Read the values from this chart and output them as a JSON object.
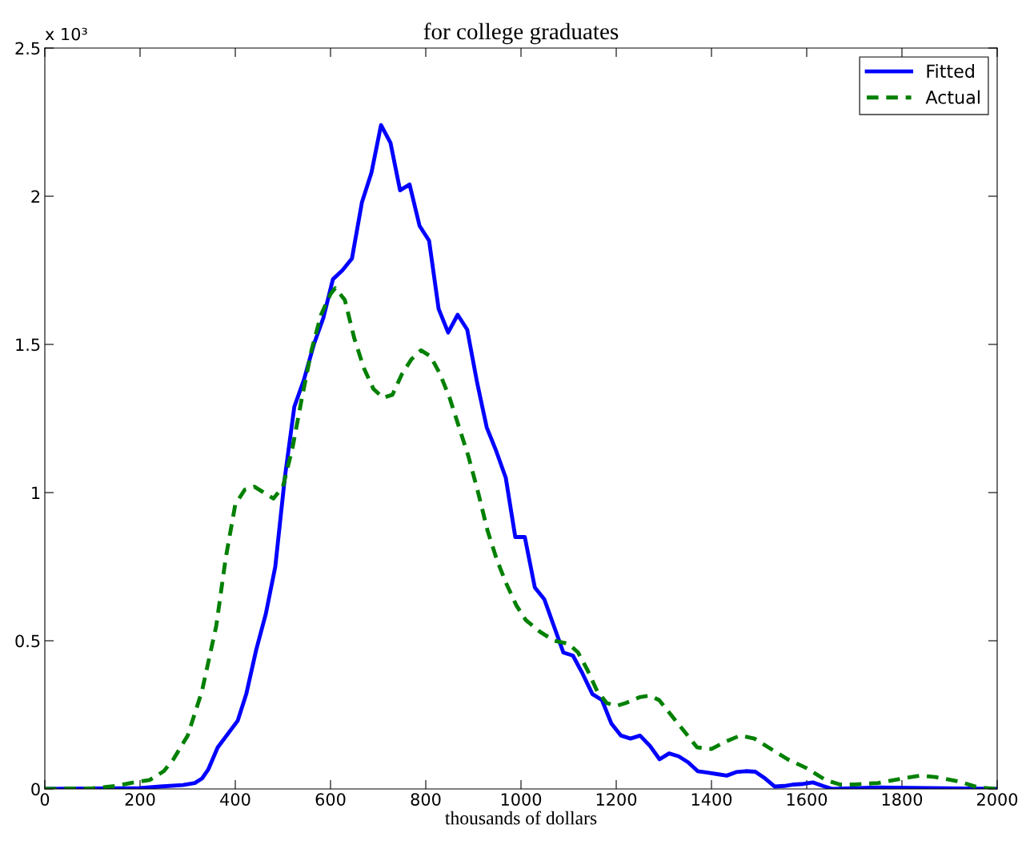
{
  "chart_data": {
    "type": "line",
    "title": "for college graduates",
    "xlabel": "thousands of dollars",
    "annotations": [
      "x 10³"
    ],
    "xlim": [
      0,
      2000
    ],
    "xticks": [
      0,
      200,
      400,
      600,
      800,
      1000,
      1200,
      1400,
      1600,
      1800,
      2000
    ],
    "ylim": [
      0,
      2.5
    ],
    "yticks": [
      0,
      0.5,
      1,
      1.5,
      2,
      2.5
    ],
    "grid": false,
    "legend": "top right",
    "marker": "none",
    "series": [
      {
        "name": "Fitted",
        "color": "#0000ff",
        "line_style": "solid",
        "x": [
          0,
          200,
          242,
          290,
          315,
          330,
          343,
          363,
          405,
          423,
          444,
          464,
          484,
          504,
          524,
          544,
          565,
          585,
          605,
          625,
          645,
          666,
          686,
          706,
          726,
          746,
          766,
          787,
          807,
          827,
          847,
          867,
          887,
          908,
          928,
          948,
          968,
          988,
          1008,
          1029,
          1049,
          1069,
          1089,
          1109,
          1129,
          1150,
          1170,
          1190,
          1210,
          1230,
          1250,
          1271,
          1291,
          1311,
          1331,
          1351,
          1371,
          1392,
          1412,
          1432,
          1452,
          1472,
          1492,
          1513,
          1533,
          1553,
          1573,
          1593,
          1613,
          1634,
          1654,
          1750,
          2000
        ],
        "values": [
          0,
          0.003,
          0.008,
          0.013,
          0.02,
          0.035,
          0.065,
          0.14,
          0.23,
          0.32,
          0.47,
          0.59,
          0.75,
          1.05,
          1.29,
          1.38,
          1.5,
          1.59,
          1.72,
          1.75,
          1.79,
          1.98,
          2.08,
          2.24,
          2.18,
          2.02,
          2.04,
          1.9,
          1.85,
          1.62,
          1.54,
          1.6,
          1.55,
          1.37,
          1.22,
          1.14,
          1.05,
          0.85,
          0.85,
          0.68,
          0.64,
          0.55,
          0.46,
          0.45,
          0.39,
          0.32,
          0.3,
          0.22,
          0.18,
          0.17,
          0.18,
          0.145,
          0.1,
          0.12,
          0.11,
          0.09,
          0.06,
          0.055,
          0.05,
          0.045,
          0.057,
          0.06,
          0.058,
          0.035,
          0.008,
          0.01,
          0.015,
          0.017,
          0.022,
          0.01,
          0.0,
          0.005,
          0
        ]
      },
      {
        "name": "Actual",
        "color": "#008000",
        "line_style": "dashed",
        "x": [
          0,
          100,
          150,
          180,
          220,
          250,
          270,
          300,
          330,
          360,
          380,
          400,
          420,
          440,
          460,
          480,
          500,
          520,
          540,
          560,
          580,
          600,
          610,
          630,
          650,
          670,
          690,
          710,
          730,
          750,
          770,
          790,
          810,
          830,
          850,
          870,
          890,
          910,
          930,
          950,
          970,
          990,
          1010,
          1040,
          1070,
          1100,
          1120,
          1140,
          1160,
          1180,
          1200,
          1220,
          1250,
          1270,
          1290,
          1310,
          1340,
          1370,
          1400,
          1430,
          1460,
          1490,
          1520,
          1560,
          1600,
          1640,
          1670,
          1700,
          1750,
          1800,
          1840,
          1870,
          1920,
          1960,
          2000
        ],
        "values": [
          0,
          0.002,
          0.01,
          0.02,
          0.03,
          0.06,
          0.1,
          0.18,
          0.33,
          0.55,
          0.78,
          0.96,
          1.01,
          1.02,
          1.0,
          0.98,
          1.02,
          1.15,
          1.32,
          1.48,
          1.6,
          1.67,
          1.69,
          1.65,
          1.52,
          1.42,
          1.35,
          1.32,
          1.33,
          1.4,
          1.45,
          1.48,
          1.46,
          1.4,
          1.32,
          1.22,
          1.12,
          1.0,
          0.87,
          0.77,
          0.69,
          0.62,
          0.57,
          0.53,
          0.5,
          0.49,
          0.46,
          0.4,
          0.33,
          0.29,
          0.28,
          0.29,
          0.31,
          0.315,
          0.3,
          0.26,
          0.2,
          0.14,
          0.135,
          0.16,
          0.18,
          0.17,
          0.14,
          0.1,
          0.07,
          0.03,
          0.015,
          0.015,
          0.02,
          0.035,
          0.045,
          0.04,
          0.025,
          0.005,
          0
        ]
      }
    ]
  }
}
